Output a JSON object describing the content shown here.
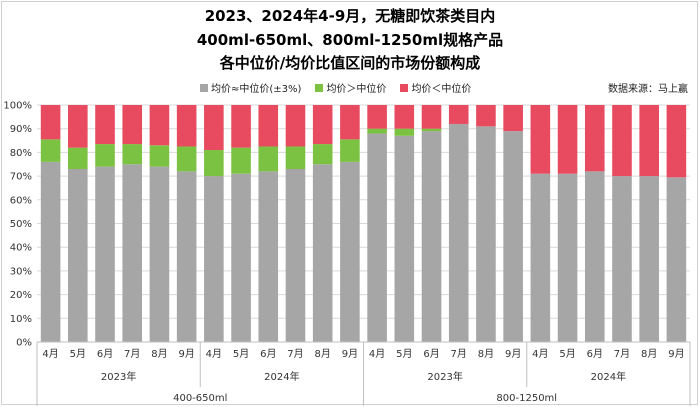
{
  "chart_data": {
    "type": "bar",
    "stacked": true,
    "title_lines": [
      "2023、2024年4-9月，无糖即饮茶类目内",
      "400ml-650ml、800ml-1250ml规格产品",
      "各中位价/均价比值区间的市场份额构成"
    ],
    "source": "数据来源：马上赢",
    "ylim": [
      0,
      100
    ],
    "y_ticks": [
      "0%",
      "10%",
      "20%",
      "30%",
      "40%",
      "50%",
      "60%",
      "70%",
      "80%",
      "90%",
      "100%"
    ],
    "categories": [
      "4月",
      "5月",
      "6月",
      "7月",
      "8月",
      "9月",
      "4月",
      "5月",
      "6月",
      "7月",
      "8月",
      "9月",
      "4月",
      "5月",
      "6月",
      "7月",
      "8月",
      "9月",
      "4月",
      "5月",
      "6月",
      "7月",
      "8月",
      "9月"
    ],
    "year_groups": [
      {
        "label": "2023年",
        "span": 6
      },
      {
        "label": "2024年",
        "span": 6
      },
      {
        "label": "2023年",
        "span": 6
      },
      {
        "label": "2024年",
        "span": 6
      }
    ],
    "size_groups": [
      {
        "label": "400-650ml",
        "span": 12
      },
      {
        "label": "800-1250ml",
        "span": 12
      }
    ],
    "series": [
      {
        "name": "均价≈中位价(±3%)",
        "color": "#a6a6a6",
        "values": [
          76,
          73,
          74,
          75,
          74,
          72,
          70,
          71,
          72,
          73,
          75,
          76,
          88,
          87,
          89,
          92,
          91,
          89,
          71,
          71,
          72,
          70,
          70,
          69.5
        ]
      },
      {
        "name": "均价＞中位价",
        "color": "#7cc242",
        "values": [
          9.5,
          9,
          9.5,
          8.5,
          9,
          10.5,
          11,
          11,
          10.5,
          9.5,
          8.5,
          9.5,
          2,
          3,
          1,
          0,
          0,
          0,
          0,
          0,
          0,
          0,
          0,
          0
        ]
      },
      {
        "name": "均价＜中位价",
        "color": "#e84a5f",
        "values": [
          14.5,
          18,
          16.5,
          16.5,
          17,
          17.5,
          19,
          18,
          17.5,
          17.5,
          16.5,
          14.5,
          10,
          10,
          10,
          8,
          9,
          11,
          29,
          29,
          28,
          30,
          30,
          30.5
        ]
      }
    ]
  }
}
